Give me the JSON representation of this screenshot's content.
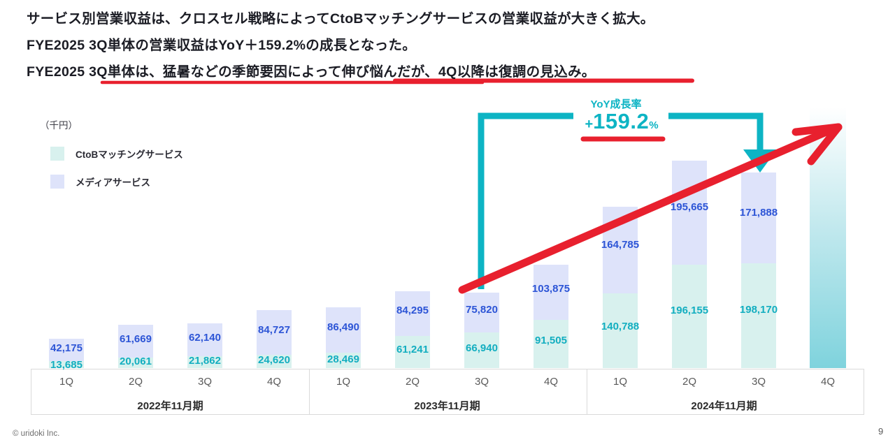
{
  "title": {
    "lines": [
      "サービス別営業収益は、クロスセル戦略によってCtoBマッチングサービスの営業収益が大きく拡大。",
      "FYE2025 3Q単体の営業収益はYoY＋159.2%の成長となった。",
      "FYE2025 3Q単体は、猛暑などの季節要因によって伸び悩んだが、4Q以降は復調の見込み。"
    ]
  },
  "chart_data": {
    "type": "bar",
    "stacked": true,
    "unit_label": "（千円）",
    "categories": [
      "1Q",
      "2Q",
      "3Q",
      "4Q",
      "1Q",
      "2Q",
      "3Q",
      "4Q",
      "1Q",
      "2Q",
      "3Q",
      "4Q"
    ],
    "groups": [
      {
        "label": "2022年11月期"
      },
      {
        "label": "2023年11月期"
      },
      {
        "label": "2024年11月期"
      }
    ],
    "series": [
      {
        "name": "CtoBマッチングサービス",
        "fill": "#d8f1ee",
        "label_color": "#13aec0",
        "values": [
          13685,
          20061,
          21862,
          24620,
          28469,
          61241,
          66940,
          91505,
          140788,
          196155,
          198170,
          null
        ]
      },
      {
        "name": "メディアサービス",
        "fill": "#dee3fa",
        "label_color": "#2d55d6",
        "values": [
          42175,
          61669,
          62140,
          84727,
          86490,
          84295,
          75820,
          103875,
          164785,
          195665,
          171888,
          null
        ]
      }
    ],
    "forecast_note": "2024年11月期 4Q：ラベルなしのグラデーション棒（復調の見込み）",
    "annotation": {
      "label": "YoY成長率",
      "plus": "+",
      "value": "159.2",
      "suffix": "%",
      "from": "2023年11月期 3Q",
      "to": "2024年11月期 3Q"
    },
    "legend_position": "top-left",
    "grid": false,
    "ylim": [
      0,
      400000
    ]
  },
  "colors": {
    "accent_teal": "#0db4c4",
    "accent_red": "#e8202e",
    "ctob_fill": "#d8f1ee",
    "ctob_label": "#13aec0",
    "media_fill": "#dee3fa",
    "media_label": "#2d55d6",
    "forecast_top": "#ffffff",
    "forecast_mid": "#c3e9ee",
    "forecast_bottom": "#7fd3dd",
    "axis_border": "#dadada"
  },
  "footer": {
    "copyright": "© uridoki Inc.",
    "page": "9"
  }
}
